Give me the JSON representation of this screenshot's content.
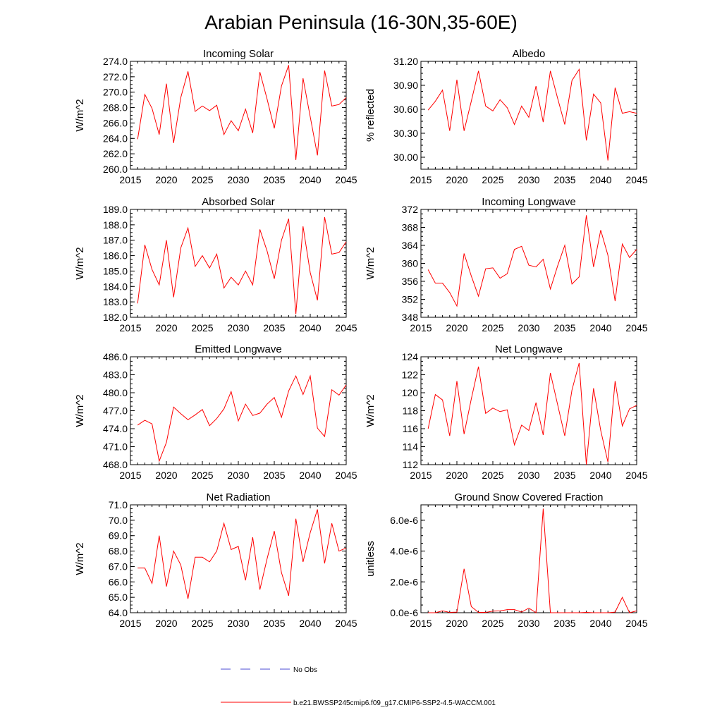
{
  "title": "Arabian Peninsula (16-30N,35-60E)",
  "legend": {
    "obs_label": "No Obs",
    "model_label": "b.e21.BWSSP245cmip6.f09_g17.CMIP6-SSP2-4.5-WACCM.001",
    "obs_color": "#4b4bd6",
    "model_color": "#ff0000"
  },
  "chart_data": [
    {
      "type": "line",
      "title": "Incoming Solar",
      "xlabel": "",
      "ylabel": "W/m^2",
      "xlim": [
        2015,
        2045
      ],
      "ylim": [
        260,
        274
      ],
      "xticks": [
        2015,
        2020,
        2025,
        2030,
        2035,
        2040,
        2045
      ],
      "yticks": [
        260,
        262,
        264,
        266,
        268,
        270,
        272,
        274
      ],
      "ytick_labels": [
        "260.0",
        "262.0",
        "264.0",
        "266.0",
        "268.0",
        "270.0",
        "272.0",
        "274.0"
      ],
      "x": [
        2016,
        2017,
        2018,
        2019,
        2020,
        2021,
        2022,
        2023,
        2024,
        2025,
        2026,
        2027,
        2028,
        2029,
        2030,
        2031,
        2032,
        2033,
        2034,
        2035,
        2036,
        2037,
        2038,
        2039,
        2040,
        2041,
        2042,
        2043,
        2044,
        2045
      ],
      "values": [
        263.9,
        269.7,
        267.9,
        264.5,
        271.1,
        263.4,
        269.3,
        272.7,
        267.5,
        268.2,
        267.6,
        268.3,
        264.5,
        266.3,
        265.0,
        267.8,
        264.7,
        272.6,
        269.1,
        265.3,
        270.8,
        273.5,
        261.2,
        271.8,
        266.8,
        261.8,
        272.8,
        268.2,
        268.4,
        269.3
      ]
    },
    {
      "type": "line",
      "title": "Albedo",
      "xlabel": "",
      "ylabel": "% reflected",
      "xlim": [
        2015,
        2045
      ],
      "ylim": [
        29.85,
        31.2
      ],
      "xticks": [
        2015,
        2020,
        2025,
        2030,
        2035,
        2040,
        2045
      ],
      "yticks": [
        30.0,
        30.3,
        30.6,
        30.9,
        31.2
      ],
      "ytick_labels": [
        "30.00",
        "30.30",
        "30.60",
        "30.90",
        "31.20"
      ],
      "x": [
        2016,
        2017,
        2018,
        2019,
        2020,
        2021,
        2022,
        2023,
        2024,
        2025,
        2026,
        2027,
        2028,
        2029,
        2030,
        2031,
        2032,
        2033,
        2034,
        2035,
        2036,
        2037,
        2038,
        2039,
        2040,
        2041,
        2042,
        2043,
        2044,
        2045
      ],
      "values": [
        30.59,
        30.7,
        30.84,
        30.33,
        30.97,
        30.33,
        30.7,
        31.08,
        30.64,
        30.58,
        30.72,
        30.62,
        30.41,
        30.64,
        30.5,
        30.89,
        30.44,
        31.08,
        30.74,
        30.41,
        30.96,
        31.1,
        30.21,
        30.79,
        30.68,
        29.96,
        30.87,
        30.55,
        30.57,
        30.55
      ]
    },
    {
      "type": "line",
      "title": "Absorbed Solar",
      "xlabel": "",
      "ylabel": "W/m^2",
      "xlim": [
        2015,
        2045
      ],
      "ylim": [
        182,
        189
      ],
      "xticks": [
        2015,
        2020,
        2025,
        2030,
        2035,
        2040,
        2045
      ],
      "yticks": [
        182,
        183,
        184,
        185,
        186,
        187,
        188,
        189
      ],
      "ytick_labels": [
        "182.0",
        "183.0",
        "184.0",
        "185.0",
        "186.0",
        "187.0",
        "188.0",
        "189.0"
      ],
      "x": [
        2016,
        2017,
        2018,
        2019,
        2020,
        2021,
        2022,
        2023,
        2024,
        2025,
        2026,
        2027,
        2028,
        2029,
        2030,
        2031,
        2032,
        2033,
        2034,
        2035,
        2036,
        2037,
        2038,
        2039,
        2040,
        2041,
        2042,
        2043,
        2044,
        2045
      ],
      "values": [
        182.9,
        186.7,
        185.1,
        184.1,
        187.0,
        183.3,
        186.5,
        187.8,
        185.3,
        186.0,
        185.2,
        186.1,
        183.9,
        184.6,
        184.1,
        185.0,
        184.1,
        187.7,
        186.3,
        184.5,
        187.0,
        188.4,
        182.2,
        187.9,
        184.9,
        183.1,
        188.5,
        186.1,
        186.2,
        186.9
      ]
    },
    {
      "type": "line",
      "title": "Incoming Longwave",
      "xlabel": "",
      "ylabel": "W/m^2",
      "xlim": [
        2015,
        2045
      ],
      "ylim": [
        348,
        372
      ],
      "xticks": [
        2015,
        2020,
        2025,
        2030,
        2035,
        2040,
        2045
      ],
      "yticks": [
        348,
        352,
        356,
        360,
        364,
        368,
        372
      ],
      "ytick_labels": [
        "348",
        "352",
        "356",
        "360",
        "364",
        "368",
        "372"
      ],
      "x": [
        2016,
        2017,
        2018,
        2019,
        2020,
        2021,
        2022,
        2023,
        2024,
        2025,
        2026,
        2027,
        2028,
        2029,
        2030,
        2031,
        2032,
        2033,
        2034,
        2035,
        2036,
        2037,
        2038,
        2039,
        2040,
        2041,
        2042,
        2043,
        2044,
        2045
      ],
      "values": [
        358.6,
        355.6,
        355.6,
        353.5,
        350.5,
        362.2,
        357.2,
        352.7,
        358.8,
        359.0,
        356.7,
        357.7,
        363.1,
        363.8,
        359.6,
        359.2,
        360.9,
        354.3,
        359.4,
        364.0,
        355.4,
        357.0,
        370.7,
        359.2,
        367.4,
        361.8,
        351.6,
        364.3,
        361.3,
        363.1
      ]
    },
    {
      "type": "line",
      "title": "Emitted Longwave",
      "xlabel": "",
      "ylabel": "W/m^2",
      "xlim": [
        2015,
        2045
      ],
      "ylim": [
        468,
        486
      ],
      "xticks": [
        2015,
        2020,
        2025,
        2030,
        2035,
        2040,
        2045
      ],
      "yticks": [
        468,
        471,
        474,
        477,
        480,
        483,
        486
      ],
      "ytick_labels": [
        "468.0",
        "471.0",
        "474.0",
        "477.0",
        "480.0",
        "483.0",
        "486.0"
      ],
      "x": [
        2016,
        2017,
        2018,
        2019,
        2020,
        2021,
        2022,
        2023,
        2024,
        2025,
        2026,
        2027,
        2028,
        2029,
        2030,
        2031,
        2032,
        2033,
        2034,
        2035,
        2036,
        2037,
        2038,
        2039,
        2040,
        2041,
        2042,
        2043,
        2044,
        2045
      ],
      "values": [
        474.6,
        475.4,
        474.8,
        468.6,
        471.7,
        477.6,
        476.5,
        475.5,
        476.3,
        477.2,
        474.5,
        475.7,
        477.3,
        480.2,
        475.3,
        478.1,
        476.2,
        476.6,
        478.1,
        479.2,
        475.9,
        480.3,
        482.8,
        479.7,
        482.8,
        474.1,
        472.7,
        480.5,
        479.6,
        481.3
      ]
    },
    {
      "type": "line",
      "title": "Net Longwave",
      "xlabel": "",
      "ylabel": "W/m^2",
      "xlim": [
        2015,
        2045
      ],
      "ylim": [
        112,
        124
      ],
      "xticks": [
        2015,
        2020,
        2025,
        2030,
        2035,
        2040,
        2045
      ],
      "yticks": [
        112,
        114,
        116,
        118,
        120,
        122,
        124
      ],
      "ytick_labels": [
        "112",
        "114",
        "116",
        "118",
        "120",
        "122",
        "124"
      ],
      "x": [
        2016,
        2017,
        2018,
        2019,
        2020,
        2021,
        2022,
        2023,
        2024,
        2025,
        2026,
        2027,
        2028,
        2029,
        2030,
        2031,
        2032,
        2033,
        2034,
        2035,
        2036,
        2037,
        2038,
        2039,
        2040,
        2041,
        2042,
        2043,
        2044,
        2045
      ],
      "values": [
        116.0,
        119.8,
        119.2,
        115.2,
        121.3,
        115.4,
        119.3,
        122.9,
        117.7,
        118.3,
        117.9,
        118.1,
        114.2,
        116.4,
        115.8,
        118.9,
        115.3,
        122.2,
        118.7,
        115.2,
        120.3,
        123.3,
        112.0,
        120.5,
        115.8,
        112.3,
        121.3,
        116.3,
        118.2,
        118.6
      ]
    },
    {
      "type": "line",
      "title": "Net Radiation",
      "xlabel": "",
      "ylabel": "W/m^2",
      "xlim": [
        2015,
        2045
      ],
      "ylim": [
        64,
        71
      ],
      "xticks": [
        2015,
        2020,
        2025,
        2030,
        2035,
        2040,
        2045
      ],
      "yticks": [
        64,
        65,
        66,
        67,
        68,
        69,
        70,
        71
      ],
      "ytick_labels": [
        "64.0",
        "65.0",
        "66.0",
        "67.0",
        "68.0",
        "69.0",
        "70.0",
        "71.0"
      ],
      "x": [
        2016,
        2017,
        2018,
        2019,
        2020,
        2021,
        2022,
        2023,
        2024,
        2025,
        2026,
        2027,
        2028,
        2029,
        2030,
        2031,
        2032,
        2033,
        2034,
        2035,
        2036,
        2037,
        2038,
        2039,
        2040,
        2041,
        2042,
        2043,
        2044,
        2045
      ],
      "values": [
        66.9,
        66.9,
        65.9,
        69.0,
        65.7,
        68.0,
        67.1,
        64.9,
        67.6,
        67.6,
        67.3,
        68.0,
        69.8,
        68.1,
        68.3,
        66.1,
        68.9,
        65.5,
        67.5,
        69.3,
        66.6,
        65.1,
        70.1,
        67.3,
        69.2,
        70.7,
        67.2,
        69.8,
        68.0,
        68.2
      ]
    },
    {
      "type": "line",
      "title": "Ground Snow Covered Fraction",
      "xlabel": "",
      "ylabel": "unitless",
      "xlim": [
        2015,
        2045
      ],
      "ylim": [
        0,
        7e-06
      ],
      "xticks": [
        2015,
        2020,
        2025,
        2030,
        2035,
        2040,
        2045
      ],
      "yticks": [
        0,
        2e-06,
        4e-06,
        6e-06
      ],
      "ytick_labels": [
        "0.0e-6",
        "2.0e-6",
        "4.0e-6",
        "6.0e-6"
      ],
      "x": [
        2016,
        2017,
        2018,
        2019,
        2020,
        2021,
        2022,
        2023,
        2024,
        2025,
        2026,
        2027,
        2028,
        2029,
        2030,
        2031,
        2032,
        2033,
        2034,
        2035,
        2036,
        2037,
        2038,
        2039,
        2040,
        2041,
        2042,
        2043,
        2044,
        2045
      ],
      "values": [
        0,
        0,
        1.2e-07,
        2e-08,
        4e-08,
        2.85e-06,
        4e-07,
        2e-08,
        2e-08,
        1e-07,
        1.2e-07,
        2e-07,
        2e-07,
        4e-08,
        3e-07,
        0,
        6.75e-06,
        0,
        0,
        0,
        0,
        0,
        2e-08,
        0,
        0,
        0,
        4e-08,
        1e-06,
        0,
        1.2e-07
      ]
    }
  ]
}
